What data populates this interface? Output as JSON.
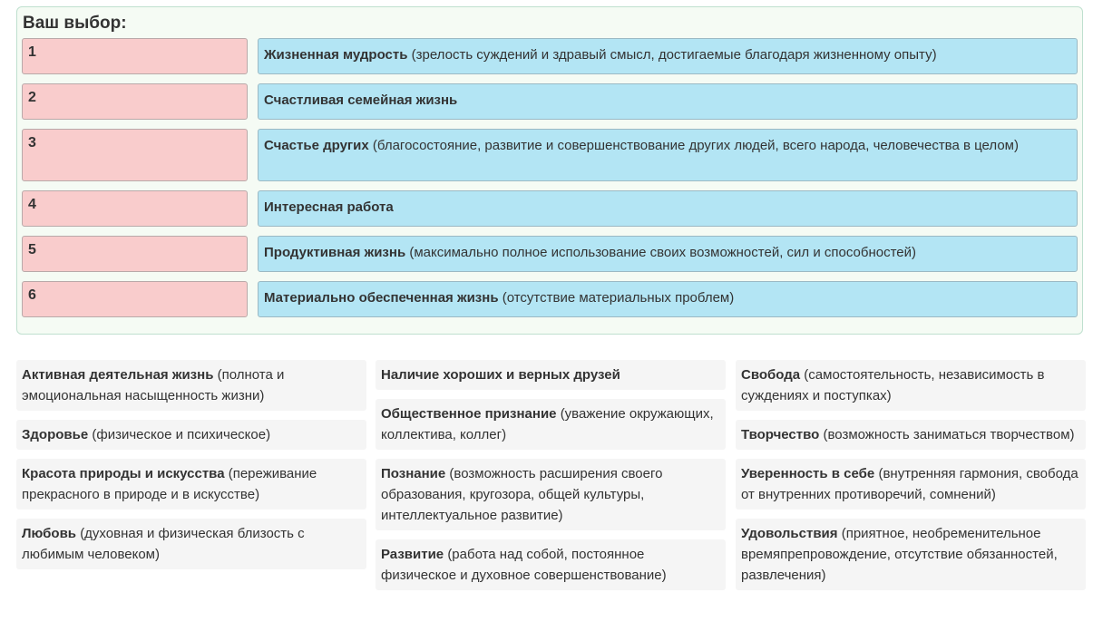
{
  "selection": {
    "title": "Ваш выбор:",
    "rows": [
      {
        "rank": "1",
        "name": "Жизненная мудрость",
        "desc": "(зрелость суждений и здравый смысл, достигаемые благодаря жизненному опыту)"
      },
      {
        "rank": "2",
        "name": "Счастливая семейная жизнь",
        "desc": ""
      },
      {
        "rank": "3",
        "name": "Счастье других",
        "desc": "(благосостояние, развитие и совершенствование других людей, всего народа, человечества в целом)"
      },
      {
        "rank": "4",
        "name": "Интересная работа",
        "desc": ""
      },
      {
        "rank": "5",
        "name": "Продуктивная жизнь",
        "desc": "(максимально полное использование своих возможностей, сил и способностей)"
      },
      {
        "rank": "6",
        "name": "Материально обеспеченная жизнь",
        "desc": "(отсутствие материальных проблем)"
      }
    ]
  },
  "options": {
    "col1": [
      {
        "name": "Активная деятельная жизнь",
        "desc": "(полнота и эмоциональная насыщенность жизни)"
      },
      {
        "name": "Здоровье",
        "desc": "(физическое и психическое)"
      },
      {
        "name": "Красота природы и искусства",
        "desc": "(переживание прекрасного в природе и в искусстве)"
      },
      {
        "name": "Любовь",
        "desc": "(духовная и физическая близость с любимым человеком)"
      }
    ],
    "col2": [
      {
        "name": "Наличие хороших и верных друзей",
        "desc": ""
      },
      {
        "name": "Общественное признание",
        "desc": "(уважение окружающих, коллектива, коллег)"
      },
      {
        "name": "Познание",
        "desc": "(возможность расширения своего образования, кругозора, общей культуры, интеллектуальное развитие)"
      },
      {
        "name": "Развитие",
        "desc": "(работа над собой, постоянное физическое и духовное совершенствование)"
      }
    ],
    "col3": [
      {
        "name": "Свобода",
        "desc": "(самостоятельность, независимость в суждениях и поступках)"
      },
      {
        "name": "Творчество",
        "desc": "(возможность заниматься творчеством)"
      },
      {
        "name": "Уверенность в себе",
        "desc": "(внутренняя гармония, свобода от внутренних противоречий, сомнений)"
      },
      {
        "name": "Удовольствия",
        "desc": "(приятное, необременительное времяпрепровождение, отсутствие обязанностей, развлечения)"
      }
    ]
  }
}
